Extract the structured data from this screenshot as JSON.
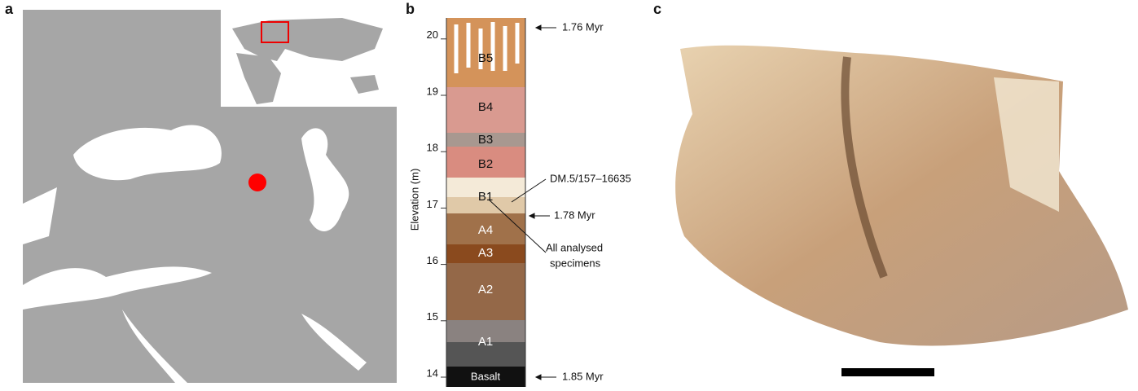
{
  "panel_labels": [
    "a",
    "b",
    "c"
  ],
  "panel_b": {
    "axis_label": "Elevation (m)",
    "yticks": [
      "14",
      "15",
      "16",
      "17",
      "18",
      "19",
      "20"
    ],
    "layers": [
      "B5",
      "B4",
      "B3",
      "B2",
      "B1",
      "A4",
      "A3",
      "A2",
      "A1",
      "Basalt"
    ],
    "ages": [
      "1.76 Myr",
      "1.78 Myr",
      "1.85 Myr"
    ],
    "specimen": "DM.5/157–16635",
    "all_specimens": [
      "All analysed",
      "specimens"
    ]
  }
}
